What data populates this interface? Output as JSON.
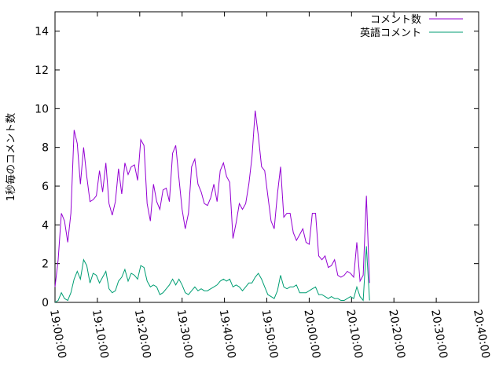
{
  "chart_data": {
    "type": "line",
    "ylabel": "1秒毎のコメント数",
    "xlabel": "",
    "title": "",
    "x_ticks": [
      "19:00:00",
      "19:10:00",
      "19:20:00",
      "19:30:00",
      "19:40:00",
      "19:50:00",
      "20:00:00",
      "20:10:00",
      "20:20:00",
      "20:30:00",
      "20:40:00"
    ],
    "y_ticks": [
      "0",
      "2",
      "4",
      "6",
      "8",
      "10",
      "12",
      "14"
    ],
    "ylim": [
      0,
      15
    ],
    "xlim_minutes": [
      0,
      100
    ],
    "grid": false,
    "legend_position": "top-right",
    "x_minutes_step": 0.75,
    "series": [
      {
        "name": "コメント数",
        "color": "#9400d3",
        "values": [
          0.8,
          2.2,
          4.6,
          4.2,
          3.1,
          4.6,
          8.9,
          8.2,
          6.1,
          8.0,
          6.5,
          5.2,
          5.3,
          5.5,
          6.8,
          5.7,
          7.2,
          5.1,
          4.5,
          5.2,
          6.9,
          5.6,
          7.2,
          6.6,
          7.0,
          7.1,
          6.3,
          8.4,
          8.1,
          5.1,
          4.2,
          6.1,
          5.2,
          4.8,
          5.8,
          5.9,
          5.2,
          7.7,
          8.1,
          6.4,
          4.8,
          3.8,
          4.6,
          7.0,
          7.4,
          6.1,
          5.7,
          5.1,
          5.0,
          5.4,
          6.1,
          5.2,
          6.8,
          7.2,
          6.5,
          6.2,
          3.3,
          4.1,
          5.1,
          4.8,
          5.1,
          6.1,
          7.5,
          9.9,
          8.6,
          7.0,
          6.8,
          5.5,
          4.2,
          3.8,
          5.6,
          7.0,
          4.4,
          4.6,
          4.6,
          3.6,
          3.2,
          3.5,
          3.8,
          3.1,
          3.0,
          4.6,
          4.6,
          2.4,
          2.2,
          2.4,
          1.8,
          1.9,
          2.2,
          1.4,
          1.3,
          1.4,
          1.6,
          1.5,
          1.3,
          3.1,
          1.1,
          1.4,
          5.5,
          1.0
        ]
      },
      {
        "name": "英語コメント",
        "color": "#009e73",
        "values": [
          0.0,
          0.1,
          0.5,
          0.2,
          0.1,
          0.5,
          1.2,
          1.6,
          1.2,
          2.2,
          1.9,
          1.0,
          1.5,
          1.4,
          1.0,
          1.3,
          1.6,
          0.7,
          0.5,
          0.6,
          1.1,
          1.3,
          1.7,
          1.1,
          1.5,
          1.4,
          1.2,
          1.9,
          1.8,
          1.1,
          0.8,
          0.9,
          0.8,
          0.4,
          0.5,
          0.7,
          0.9,
          1.2,
          0.9,
          1.2,
          0.9,
          0.5,
          0.4,
          0.6,
          0.8,
          0.6,
          0.7,
          0.6,
          0.6,
          0.7,
          0.8,
          0.9,
          1.1,
          1.2,
          1.1,
          1.2,
          0.8,
          0.9,
          0.8,
          0.6,
          0.8,
          1.0,
          1.0,
          1.3,
          1.5,
          1.2,
          0.8,
          0.4,
          0.3,
          0.2,
          0.6,
          1.4,
          0.8,
          0.7,
          0.8,
          0.8,
          0.9,
          0.5,
          0.5,
          0.5,
          0.6,
          0.7,
          0.8,
          0.4,
          0.4,
          0.3,
          0.2,
          0.3,
          0.2,
          0.2,
          0.1,
          0.1,
          0.2,
          0.3,
          0.2,
          0.8,
          0.3,
          0.1,
          2.9,
          0.1
        ]
      }
    ]
  }
}
